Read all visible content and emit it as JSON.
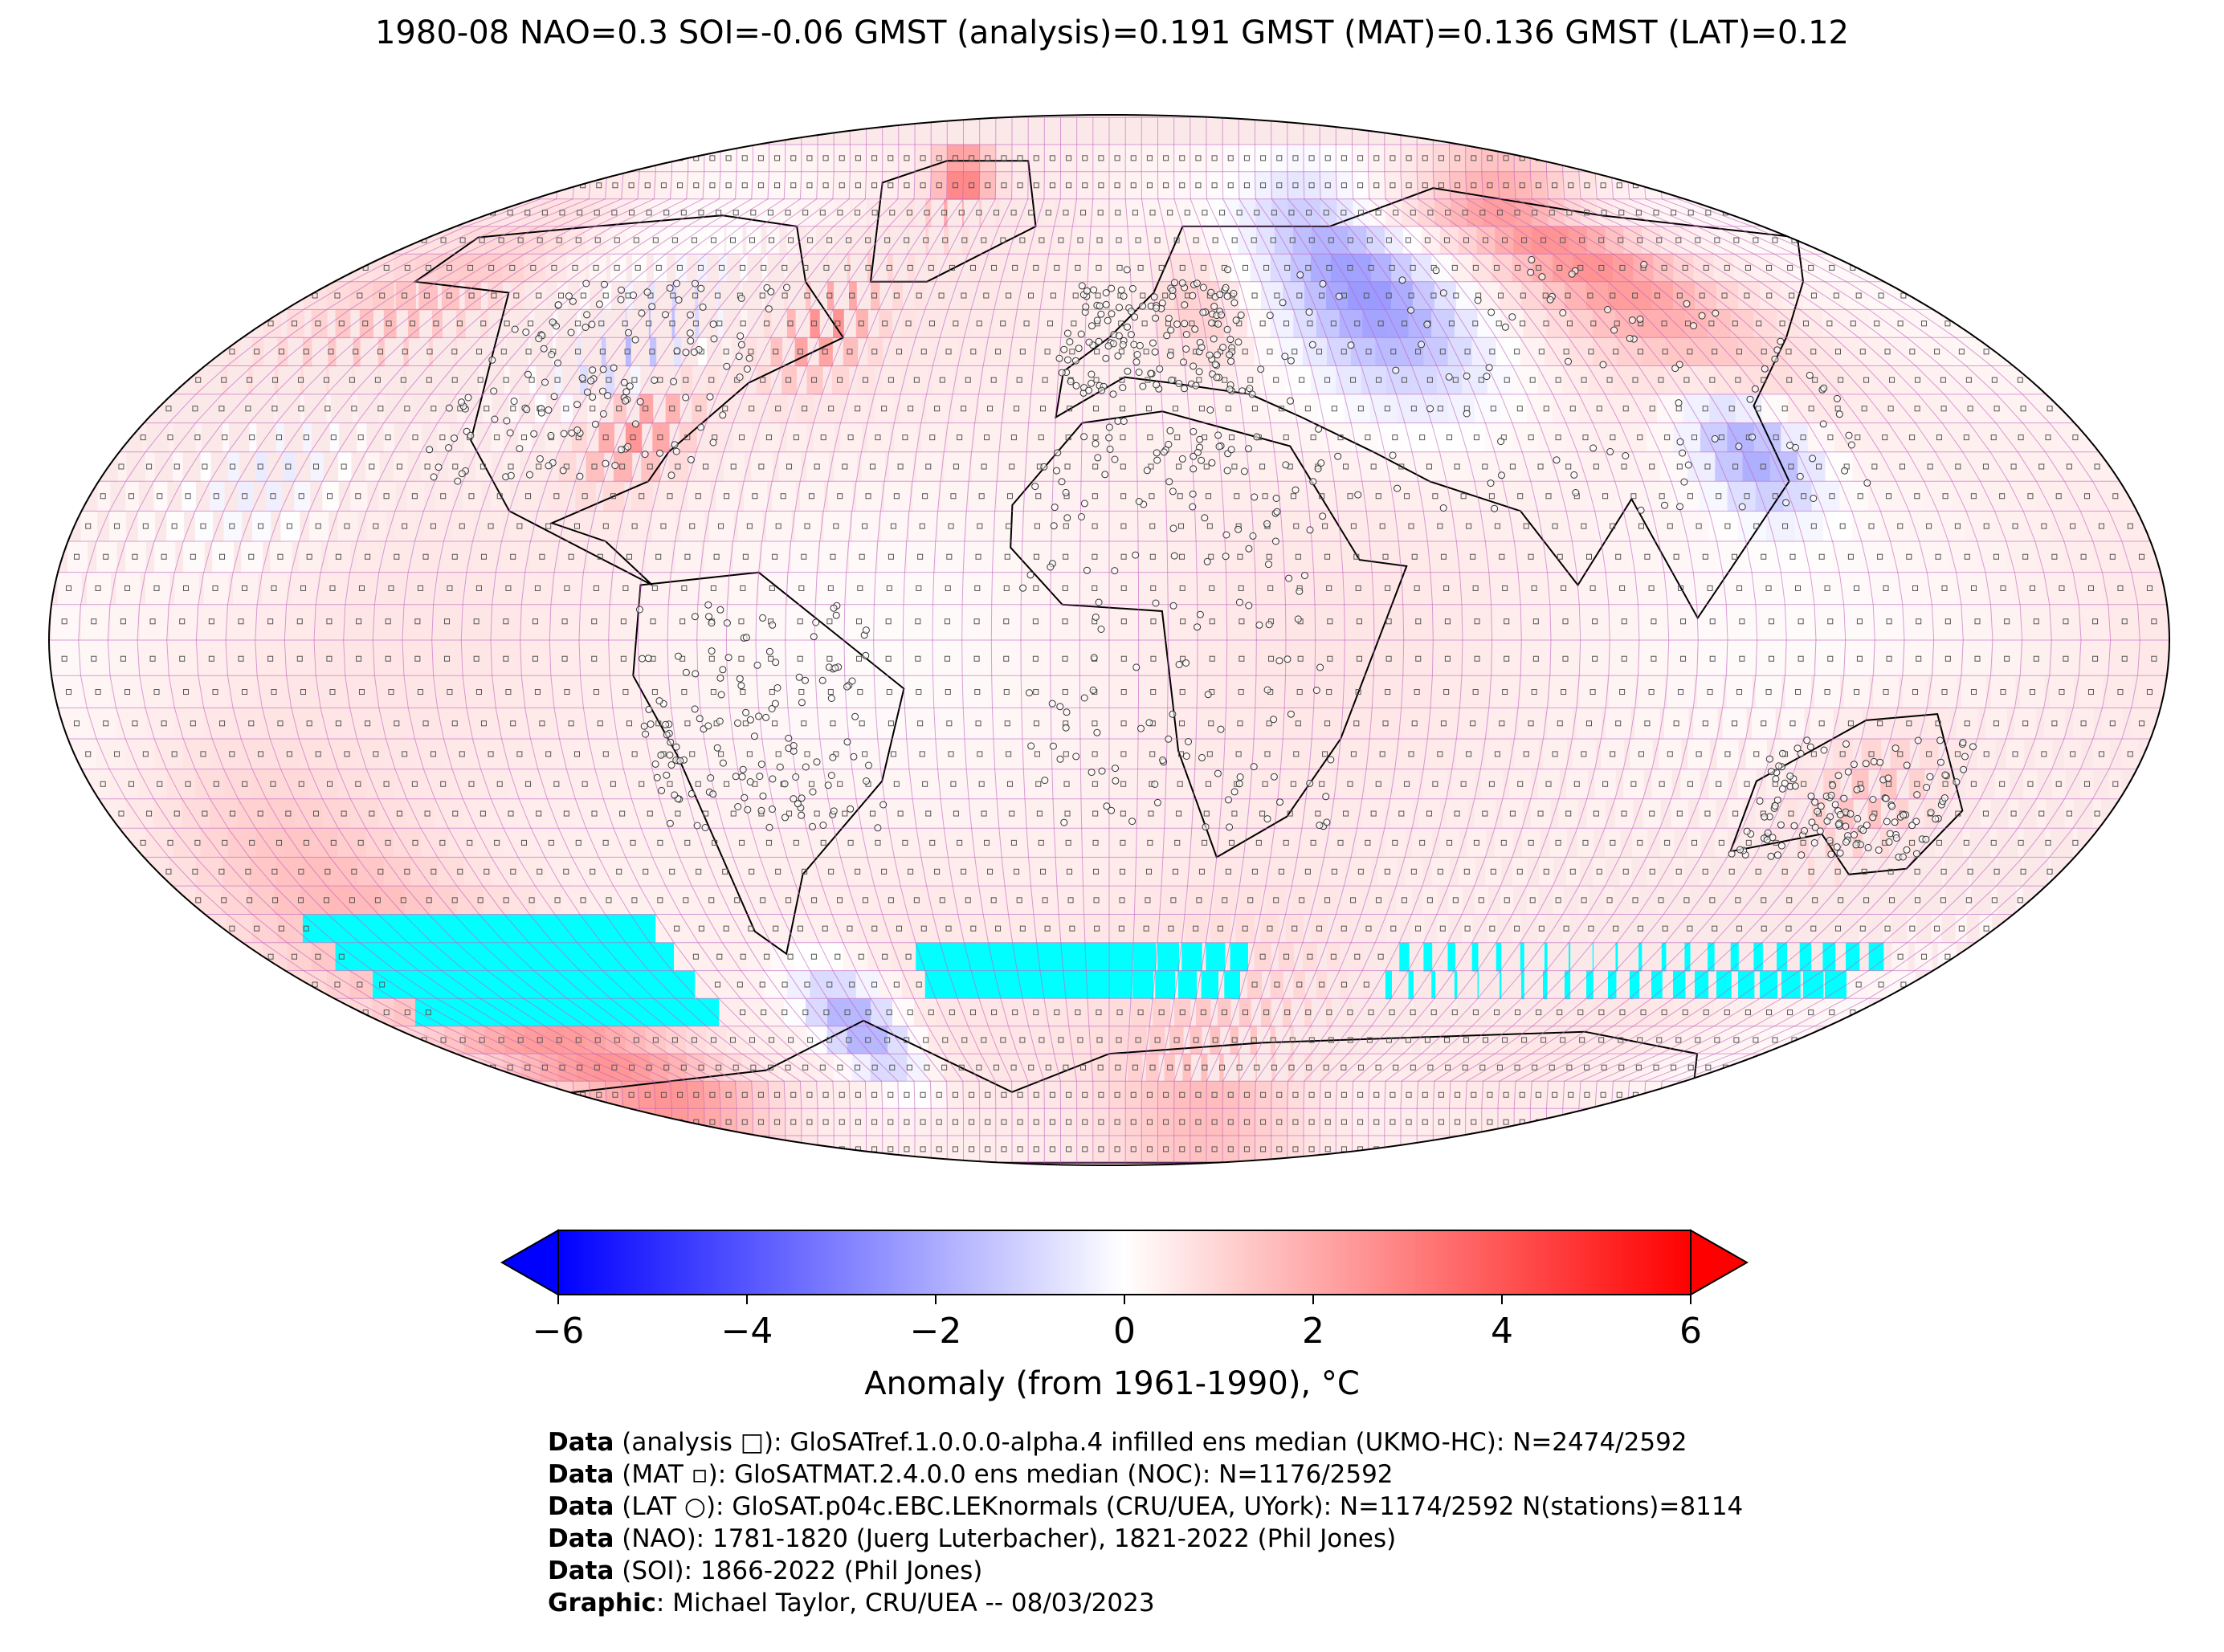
{
  "title": "1980-08 NAO=0.3 SOI=-0.06 GMST (analysis)=0.191 GMST (MAT)=0.136 GMST (LAT)=0.12",
  "colorbar": {
    "label": "Anomaly (from 1961-1990), °C",
    "min": -6,
    "max": 6,
    "ticks": [
      "−6",
      "−4",
      "−2",
      "0",
      "2",
      "4",
      "6"
    ],
    "tick_values": [
      -6,
      -4,
      -2,
      0,
      2,
      4,
      6
    ],
    "colors": {
      "low": "#0000ff",
      "mid": "#ffffff",
      "high": "#ff0000",
      "no_data": "#00ffff"
    }
  },
  "map": {
    "projection": "Robinson",
    "grid_color": "#c060c0",
    "marker_types": [
      "analysis □",
      "MAT ▫",
      "LAT ○"
    ]
  },
  "credits": [
    {
      "key": "Data",
      "text": " (analysis □): GloSATref.1.0.0.0-alpha.4 infilled ens median (UKMO-HC): N=2474/2592"
    },
    {
      "key": "Data",
      "text": " (MAT ▫): GloSATMAT.2.4.0.0 ens median (NOC): N=1176/2592"
    },
    {
      "key": "Data",
      "text": " (LAT ○): GloSAT.p04c.EBC.LEKnormals (CRU/UEA, UYork): N=1174/2592 N(stations)=8114"
    },
    {
      "key": "Data",
      "text": " (NAO): 1781-1820 (Juerg Luterbacher), 1821-2022 (Phil Jones)"
    },
    {
      "key": "Data",
      "text": " (SOI): 1866-2022 (Phil Jones)"
    },
    {
      "key": "Graphic",
      "text": ": Michael Taylor, CRU/UEA -- 08/03/2023"
    }
  ]
}
